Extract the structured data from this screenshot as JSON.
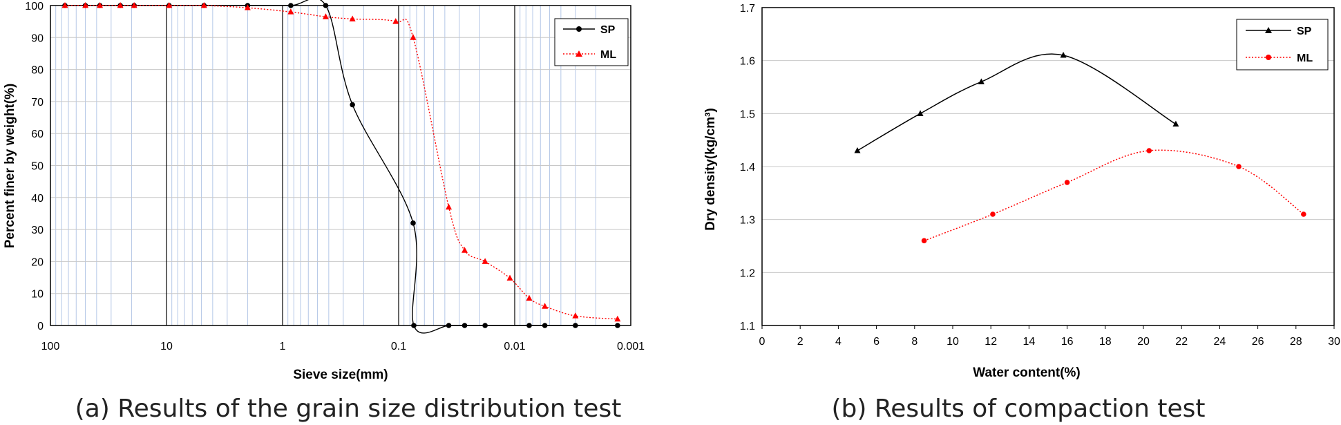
{
  "chart_data": [
    {
      "type": "line",
      "caption": "(a) Results of the grain size distribution test",
      "xlabel": "Sieve size(mm)",
      "ylabel": "Percent finer by weight(%)",
      "xscale": "log",
      "xaxis_reversed": true,
      "xlim": [
        100,
        0.001
      ],
      "ylim": [
        0,
        100
      ],
      "xticks": [
        "100",
        "10",
        "1",
        "0.1",
        "0.01",
        "0.001"
      ],
      "yticks": [
        "0",
        "10",
        "20",
        "30",
        "40",
        "50",
        "60",
        "70",
        "80",
        "90",
        "100"
      ],
      "grid": true,
      "legend": "top-right",
      "series": [
        {
          "name": "SP",
          "color": "#000000",
          "marker": "circle",
          "line": "solid",
          "x": [
            75,
            50,
            37.5,
            25,
            19,
            9.5,
            4.75,
            2,
            0.85,
            0.425,
            0.25,
            0.075,
            0.074,
            0.037,
            0.027,
            0.018,
            0.0075,
            0.0055,
            0.003,
            0.0013
          ],
          "y": [
            100,
            100,
            100,
            100,
            100,
            100,
            100,
            100,
            100,
            100,
            69,
            32,
            0,
            0,
            0,
            0,
            0,
            0,
            0,
            0
          ]
        },
        {
          "name": "ML",
          "color": "#ff0000",
          "marker": "triangle",
          "line": "dotted",
          "x": [
            75,
            50,
            37.5,
            25,
            19,
            9.5,
            4.75,
            2,
            0.85,
            0.425,
            0.25,
            0.106,
            0.075,
            0.037,
            0.027,
            0.018,
            0.011,
            0.0075,
            0.0055,
            0.003,
            0.0013
          ],
          "y": [
            100,
            100,
            100,
            100,
            100,
            100,
            100,
            99.3,
            98,
            96.5,
            95.8,
            95,
            90,
            37,
            23.5,
            20,
            14.8,
            8.5,
            6,
            3,
            2
          ]
        }
      ]
    },
    {
      "type": "line",
      "caption": "(b) Results of compaction test",
      "xlabel": "Water content(%)",
      "ylabel": "Dry density(kg/cm³)",
      "xlim": [
        0,
        30
      ],
      "ylim": [
        1.1,
        1.7
      ],
      "xticks": [
        "0",
        "2",
        "4",
        "6",
        "8",
        "10",
        "12",
        "14",
        "16",
        "18",
        "20",
        "22",
        "24",
        "26",
        "28",
        "30"
      ],
      "yticks": [
        "1.1",
        "1.2",
        "1.3",
        "1.4",
        "1.5",
        "1.6",
        "1.7"
      ],
      "grid": true,
      "legend": "top-right",
      "series": [
        {
          "name": "SP",
          "color": "#000000",
          "marker": "triangle",
          "line": "solid",
          "x": [
            5,
            8.3,
            11.5,
            15.8,
            21.7
          ],
          "y": [
            1.43,
            1.5,
            1.56,
            1.61,
            1.48
          ]
        },
        {
          "name": "ML",
          "color": "#ff0000",
          "marker": "circle",
          "line": "dotted",
          "x": [
            8.5,
            12.1,
            16,
            20.3,
            25,
            28.4
          ],
          "y": [
            1.26,
            1.31,
            1.37,
            1.43,
            1.4,
            1.31
          ]
        }
      ]
    }
  ]
}
